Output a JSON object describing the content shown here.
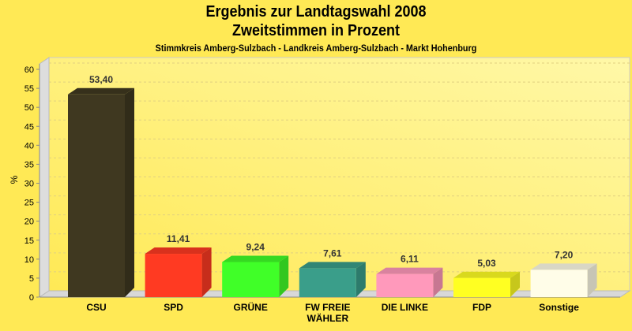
{
  "chart_data": {
    "type": "bar",
    "title": "Ergebnis zur Landtagswahl 2008",
    "title2": "Zweitstimmen in Prozent",
    "subtitle": "Stimmkreis Amberg-Sulzbach - Landkreis Amberg-Sulzbach - Markt Hohenburg",
    "xlabel": "",
    "ylabel": "%",
    "ylim": [
      0,
      60
    ],
    "yticks": [
      0,
      5,
      10,
      15,
      20,
      25,
      30,
      35,
      40,
      45,
      50,
      55,
      60
    ],
    "grid": true,
    "categories": [
      "CSU",
      "SPD",
      "GRÜNE",
      "FW FREIE WÄHLER",
      "DIE LINKE",
      "FDP",
      "Sonstige"
    ],
    "category_lines": [
      [
        "CSU"
      ],
      [
        "SPD"
      ],
      [
        "GRÜNE"
      ],
      [
        "FW FREIE",
        "WÄHLER"
      ],
      [
        "DIE LINKE"
      ],
      [
        "FDP"
      ],
      [
        "Sonstige"
      ]
    ],
    "values": [
      53.4,
      11.41,
      9.24,
      7.61,
      6.11,
      5.03,
      7.2
    ],
    "labels": [
      "53,40",
      "11,41",
      "9,24",
      "7,61",
      "6,11",
      "5,03",
      "7,20"
    ],
    "colors": [
      "#3F3820",
      "#FF3A22",
      "#40FF28",
      "#3A9E8A",
      "#FF99BB",
      "#FFFF22",
      "#FFFDE8"
    ]
  }
}
